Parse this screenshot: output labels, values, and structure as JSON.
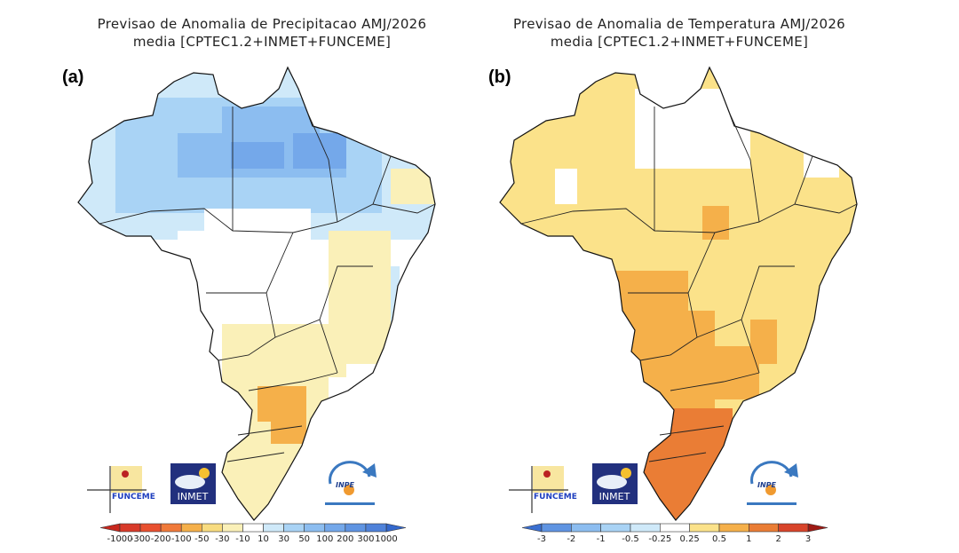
{
  "panels": [
    {
      "label": "(a)",
      "title_line1": "Previsao de Anomalia de Precipitacao AMJ/2026",
      "title_line2": "media [CPTEC1.2+INMET+FUNCEME]"
    },
    {
      "label": "(b)",
      "title_line1": "Previsao de Anomalia de Temperatura AMJ/2026",
      "title_line2": "media [CPTEC1.2+INMET+FUNCEME]"
    }
  ],
  "logos": {
    "funceme": "FUNCEME",
    "inmet": "INMET",
    "inpe": "INPE"
  },
  "chart_data": [
    {
      "type": "heatmap",
      "title": "Previsao de Anomalia de Precipitacao AMJ/2026 media [CPTEC1.2+INMET+FUNCEME]",
      "variable": "precipitation anomaly",
      "region": "Brazil",
      "colorbar": {
        "tick_labels": [
          "-1000",
          "-300",
          "-200",
          "-100",
          "-50",
          "-30",
          "-10",
          "10",
          "30",
          "50",
          "100",
          "200",
          "300",
          "1000"
        ],
        "colors": [
          "#c8281e",
          "#d83a2a",
          "#e8502f",
          "#f07a3a",
          "#f5b04a",
          "#f8dc80",
          "#faf0b8",
          "#ffffff",
          "#cfe9f9",
          "#a9d3f5",
          "#8cbdf0",
          "#74a8ea",
          "#5f94e2",
          "#4f82da",
          "#3468cc"
        ]
      },
      "summary": {
        "north": "positive (10 to 100)",
        "northeast_coast": "weak negative/positive mix",
        "center_south": "-10 to -50",
        "south_parana_sc": "-50 to -100"
      }
    },
    {
      "type": "heatmap",
      "title": "Previsao de Anomalia de Temperatura AMJ/2026 media [CPTEC1.2+INMET+FUNCEME]",
      "variable": "temperature anomaly",
      "region": "Brazil",
      "colorbar": {
        "tick_labels": [
          "-3",
          "-2",
          "-1",
          "-0.5",
          "-0.25",
          "0.25",
          "0.5",
          "1",
          "2",
          "3"
        ],
        "colors": [
          "#3a6fd0",
          "#5f94e2",
          "#8cbdf0",
          "#a9d3f5",
          "#cfe9f9",
          "#ffffff",
          "#fbe28a",
          "#f5b04a",
          "#ea7d35",
          "#d8442a",
          "#9e1a14"
        ]
      },
      "summary": {
        "most_of_country": "0.25 to 0.5",
        "center_west_southeast": "0.5 to 1",
        "rio_grande_do_sul": "1 to 2",
        "north_amazon_parts": "-0.25 to 0.25"
      }
    }
  ]
}
